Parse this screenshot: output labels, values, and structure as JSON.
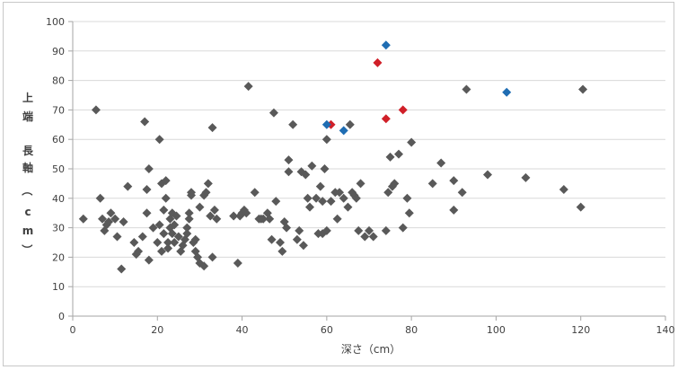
{
  "chart_data": {
    "type": "scatter",
    "title": "",
    "xlabel": "深さ（cm）",
    "ylabel": "上端長軸（cm）",
    "ylabel_chars": [
      "上",
      "端",
      "長",
      "軸",
      "（",
      "c",
      "m",
      "）"
    ],
    "xlim": [
      0,
      140
    ],
    "ylim": [
      0,
      100
    ],
    "xticks": [
      0,
      20,
      40,
      60,
      80,
      100,
      120,
      140
    ],
    "yticks": [
      0,
      10,
      20,
      30,
      40,
      50,
      60,
      70,
      80,
      90,
      100
    ],
    "grid": true,
    "legend": "none",
    "colors": {
      "gray": "#595959",
      "red": "#d01f28",
      "blue": "#1f6db3",
      "grid": "#d9d9d9",
      "axis": "#a6a6a6"
    },
    "series": [
      {
        "color": "gray",
        "points": [
          [
            2.5,
            33
          ],
          [
            5.5,
            70
          ],
          [
            6.5,
            40
          ],
          [
            7,
            33
          ],
          [
            7.5,
            29
          ],
          [
            8,
            31
          ],
          [
            8.5,
            32
          ],
          [
            9,
            35
          ],
          [
            10,
            33
          ],
          [
            10.5,
            27
          ],
          [
            11.5,
            16
          ],
          [
            12,
            32
          ],
          [
            13,
            44
          ],
          [
            14.5,
            25
          ],
          [
            15,
            21
          ],
          [
            15.5,
            22
          ],
          [
            16.5,
            27
          ],
          [
            17,
            66
          ],
          [
            17.5,
            43
          ],
          [
            17.5,
            35
          ],
          [
            18,
            50
          ],
          [
            18,
            19
          ],
          [
            19,
            30
          ],
          [
            20,
            25
          ],
          [
            20.5,
            60
          ],
          [
            20.5,
            31
          ],
          [
            21,
            22
          ],
          [
            21,
            45
          ],
          [
            21.5,
            28
          ],
          [
            21.5,
            36
          ],
          [
            22,
            40
          ],
          [
            22,
            46
          ],
          [
            22.5,
            23
          ],
          [
            22.5,
            25
          ],
          [
            23,
            33
          ],
          [
            23,
            30
          ],
          [
            23.5,
            28
          ],
          [
            23.5,
            35
          ],
          [
            24,
            31
          ],
          [
            24,
            25
          ],
          [
            24.5,
            34
          ],
          [
            25,
            27
          ],
          [
            25.5,
            22
          ],
          [
            26,
            24
          ],
          [
            26.5,
            26
          ],
          [
            27,
            28
          ],
          [
            27,
            30
          ],
          [
            27.5,
            35
          ],
          [
            27.5,
            33
          ],
          [
            28,
            42
          ],
          [
            28,
            41
          ],
          [
            28.5,
            25
          ],
          [
            29,
            26
          ],
          [
            29,
            22
          ],
          [
            29.5,
            20
          ],
          [
            30,
            37
          ],
          [
            30,
            18
          ],
          [
            31,
            17
          ],
          [
            31,
            41
          ],
          [
            31.5,
            42
          ],
          [
            32,
            45
          ],
          [
            32.5,
            34
          ],
          [
            33,
            20
          ],
          [
            33,
            64
          ],
          [
            33.5,
            36
          ],
          [
            34,
            33
          ],
          [
            38,
            34
          ],
          [
            39,
            18
          ],
          [
            39.5,
            34
          ],
          [
            40,
            35
          ],
          [
            40.5,
            36
          ],
          [
            41,
            35
          ],
          [
            41.5,
            78
          ],
          [
            43,
            42
          ],
          [
            44,
            33
          ],
          [
            44.5,
            33
          ],
          [
            45,
            33
          ],
          [
            46,
            35
          ],
          [
            46.5,
            33
          ],
          [
            47,
            26
          ],
          [
            47.5,
            69
          ],
          [
            48,
            39
          ],
          [
            49,
            25
          ],
          [
            49.5,
            22
          ],
          [
            50,
            32
          ],
          [
            50.5,
            30
          ],
          [
            51,
            49
          ],
          [
            51,
            53
          ],
          [
            52,
            65
          ],
          [
            53,
            26
          ],
          [
            53.5,
            29
          ],
          [
            54,
            49
          ],
          [
            54.5,
            24
          ],
          [
            55,
            48
          ],
          [
            55.5,
            40
          ],
          [
            56,
            37
          ],
          [
            56.5,
            51
          ],
          [
            57.5,
            40
          ],
          [
            58,
            28
          ],
          [
            58.5,
            44
          ],
          [
            59,
            28
          ],
          [
            59,
            39
          ],
          [
            59.5,
            50
          ],
          [
            60,
            60
          ],
          [
            60,
            29
          ],
          [
            61,
            39
          ],
          [
            62,
            42
          ],
          [
            62.5,
            33
          ],
          [
            63,
            42
          ],
          [
            64,
            40
          ],
          [
            65,
            37
          ],
          [
            65.5,
            65
          ],
          [
            66,
            42
          ],
          [
            66.5,
            41
          ],
          [
            67,
            40
          ],
          [
            67.5,
            29
          ],
          [
            68,
            45
          ],
          [
            69,
            27
          ],
          [
            70,
            29
          ],
          [
            71,
            27
          ],
          [
            74,
            29
          ],
          [
            74.5,
            42
          ],
          [
            75,
            54
          ],
          [
            75.5,
            44
          ],
          [
            76,
            45
          ],
          [
            77,
            55
          ],
          [
            78,
            30
          ],
          [
            79,
            40
          ],
          [
            79.5,
            35
          ],
          [
            80,
            59
          ],
          [
            85,
            45
          ],
          [
            87,
            52
          ],
          [
            90,
            36
          ],
          [
            90,
            46
          ],
          [
            92,
            42
          ],
          [
            93,
            77
          ],
          [
            98,
            48
          ],
          [
            107,
            47
          ],
          [
            116,
            43
          ],
          [
            120,
            37
          ],
          [
            120.5,
            77
          ]
        ]
      },
      {
        "color": "red",
        "points": [
          [
            61,
            65
          ],
          [
            72,
            86
          ],
          [
            74,
            67
          ],
          [
            78,
            70
          ]
        ]
      },
      {
        "color": "blue",
        "points": [
          [
            60,
            65
          ],
          [
            64,
            63
          ],
          [
            74,
            92
          ],
          [
            102.5,
            76
          ]
        ]
      }
    ]
  }
}
